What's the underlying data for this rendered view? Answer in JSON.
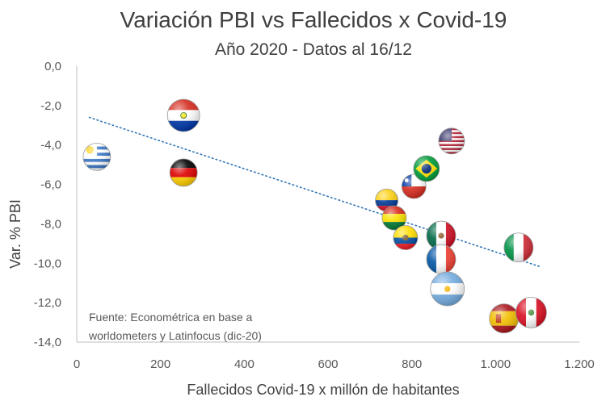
{
  "chart_data": {
    "type": "scatter",
    "title": "Variación PBI vs Fallecidos x Covid-19",
    "subtitle": "Año 2020 - Datos al 16/12",
    "xlabel": "Fallecidos Covid-19 x millón de habitantes",
    "ylabel": "Var. % PBI",
    "xlim": [
      0,
      1200
    ],
    "ylim": [
      -14,
      0
    ],
    "x_ticks": [
      "0",
      "200",
      "400",
      "600",
      "800",
      "1.000",
      "1.200"
    ],
    "y_ticks": [
      "0,0",
      "-2,0",
      "-4,0",
      "-6,0",
      "-8,0",
      "-10,0",
      "-12,0",
      "-14,0"
    ],
    "grid": false,
    "source_note": [
      "Fuente: Econométrica en base a",
      "worldometers y Latinfocus (dic-20)"
    ],
    "trendline": {
      "style": "dotted",
      "x": [
        30,
        1110
      ],
      "y": [
        -2.6,
        -10.2
      ],
      "color": "#2E75B6"
    },
    "points": [
      {
        "x": 48,
        "y": -4.6,
        "country": "uruguay"
      },
      {
        "x": 255,
        "y": -2.5,
        "country": "paraguay"
      },
      {
        "x": 255,
        "y": -5.4,
        "country": "germany"
      },
      {
        "x": 740,
        "y": -6.8,
        "country": "colombia"
      },
      {
        "x": 758,
        "y": -7.7,
        "country": "bolivia"
      },
      {
        "x": 785,
        "y": -8.7,
        "country": "ecuador"
      },
      {
        "x": 805,
        "y": -6.1,
        "country": "chile"
      },
      {
        "x": 835,
        "y": -5.2,
        "country": "brazil"
      },
      {
        "x": 895,
        "y": -3.8,
        "country": "usa"
      },
      {
        "x": 870,
        "y": -8.6,
        "country": "mexico"
      },
      {
        "x": 870,
        "y": -9.8,
        "country": "france"
      },
      {
        "x": 885,
        "y": -11.3,
        "country": "argentina"
      },
      {
        "x": 1055,
        "y": -9.2,
        "country": "italy"
      },
      {
        "x": 1020,
        "y": -12.8,
        "country": "spain"
      },
      {
        "x": 1085,
        "y": -12.5,
        "country": "peru"
      }
    ]
  }
}
